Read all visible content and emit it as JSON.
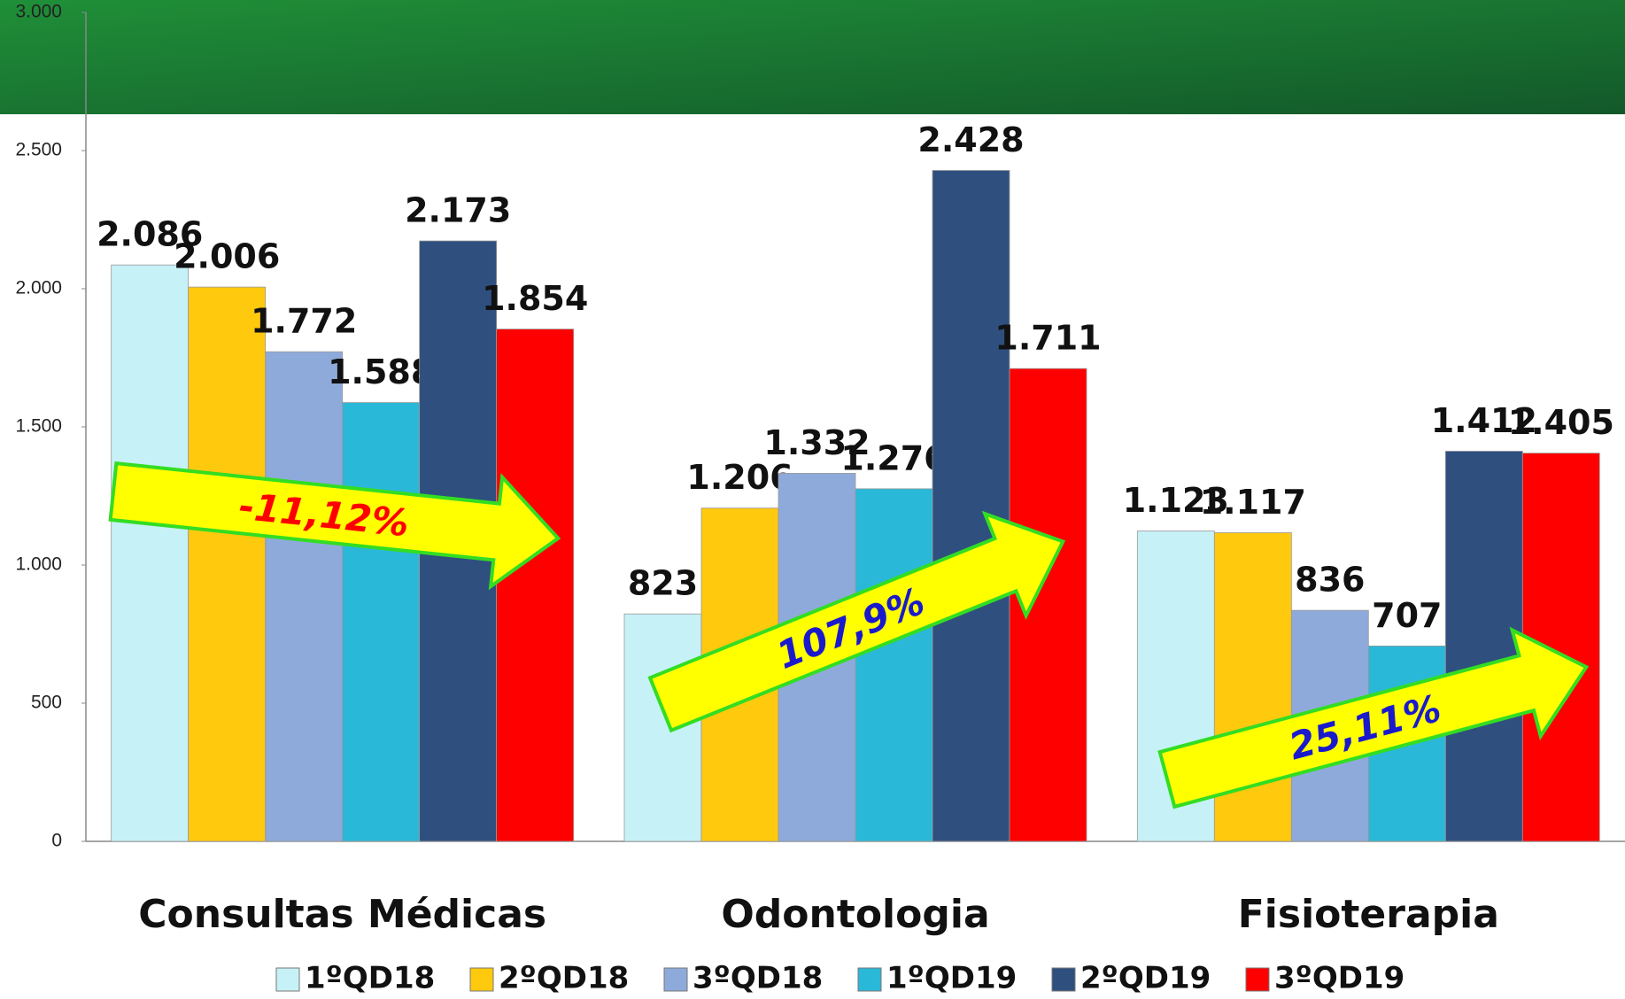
{
  "chart_data": {
    "type": "bar",
    "categories": [
      "Consultas Médicas",
      "Odontologia",
      "Fisioterapia"
    ],
    "series": [
      {
        "name": "1ºQD18",
        "color": "#c6f1f7",
        "values": [
          2086,
          823,
          1123
        ],
        "value_labels": [
          "2.086",
          "823",
          "1.123"
        ]
      },
      {
        "name": "2ºQD18",
        "color": "#ffc90e",
        "values": [
          2006,
          1206,
          1117
        ],
        "value_labels": [
          "2.006",
          "1.206",
          "1.117"
        ]
      },
      {
        "name": "3ºQD18",
        "color": "#8eaadb",
        "values": [
          1772,
          1332,
          836
        ],
        "value_labels": [
          "1.772",
          "1.332",
          "836"
        ]
      },
      {
        "name": "1ºQD19",
        "color": "#2ab8d8",
        "values": [
          1588,
          1276,
          707
        ],
        "value_labels": [
          "1.588",
          "1.276",
          "707"
        ]
      },
      {
        "name": "2ºQD19",
        "color": "#2f4f7f",
        "values": [
          2173,
          2428,
          1412
        ],
        "value_labels": [
          "2.173",
          "2.428",
          "1.412"
        ]
      },
      {
        "name": "3ºQD19",
        "color": "#ff0000",
        "values": [
          1854,
          1711,
          1405
        ],
        "value_labels": [
          "1.854",
          "1.711",
          "1.405"
        ]
      }
    ],
    "ylim": [
      0,
      3000
    ],
    "yticks": [
      0,
      500,
      {
        "value": 1000,
        "label": "1.000"
      },
      {
        "value": 1500,
        "label": "1.500"
      },
      {
        "value": 2000,
        "label": "2.000"
      },
      {
        "value": 2500,
        "label": "2.500"
      },
      {
        "value": 3000,
        "label": "3.000"
      }
    ],
    "annotations": [
      {
        "text": "-11,12%",
        "color": "#ff0000"
      },
      {
        "text": "107,9%",
        "color": "#1a1acc"
      },
      {
        "text": "25,11%",
        "color": "#1a1acc"
      }
    ],
    "legend": "bottom"
  }
}
